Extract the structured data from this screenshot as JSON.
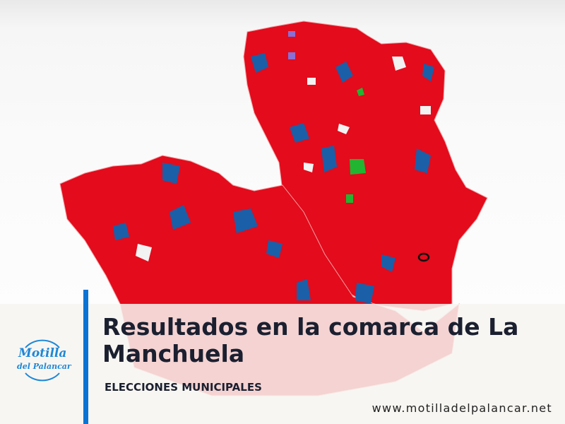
{
  "header": {
    "title": "Resultados en la comarca de La Manchuela",
    "subtitle": "ELECCIONES MUNICIPALES"
  },
  "footer": {
    "url": "www.motilladelpalancar.net"
  },
  "logo": {
    "line1": "Motilla",
    "line2": "del Palancar"
  },
  "map": {
    "colors": {
      "majority": "#e30b1c",
      "second": "#1a5fa8",
      "other": "#22b531",
      "minor": "#8a6fd6"
    }
  }
}
